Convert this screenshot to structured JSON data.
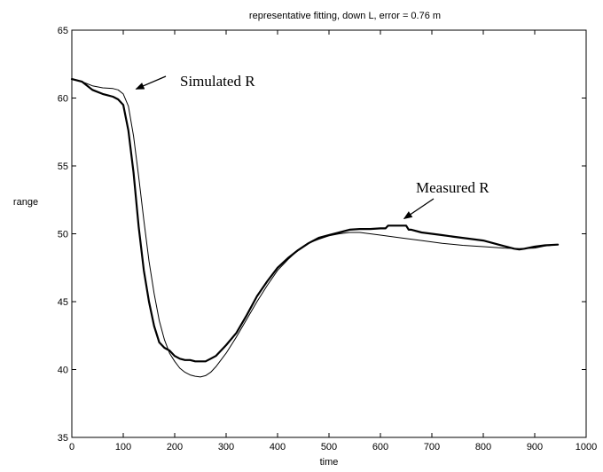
{
  "chart_data": {
    "type": "line",
    "title": "representative fitting, down L, error = 0.76 m",
    "xlabel": "time",
    "ylabel": "range",
    "xlim": [
      0,
      1000
    ],
    "ylim": [
      35,
      65
    ],
    "xticks": [
      "0",
      "100",
      "200",
      "300",
      "400",
      "500",
      "600",
      "700",
      "800",
      "900",
      "1000"
    ],
    "yticks": [
      "35",
      "40",
      "45",
      "50",
      "55",
      "60",
      "65"
    ],
    "grid": false,
    "series": [
      {
        "name": "Measured R",
        "color": "#000000",
        "x": [
          0,
          20,
          40,
          60,
          70,
          80,
          90,
          100,
          110,
          120,
          130,
          140,
          150,
          160,
          170,
          180,
          190,
          200,
          210,
          220,
          230,
          240,
          250,
          260,
          270,
          280,
          300,
          320,
          340,
          360,
          380,
          400,
          420,
          440,
          460,
          480,
          500,
          520,
          540,
          560,
          580,
          600,
          610,
          615,
          630,
          640,
          650,
          655,
          660,
          680,
          700,
          720,
          740,
          760,
          780,
          800,
          820,
          840,
          860,
          870,
          880,
          900,
          920,
          945
        ],
        "y": [
          61.4,
          61.2,
          60.6,
          60.3,
          60.2,
          60.1,
          59.9,
          59.5,
          57.6,
          54.5,
          50.5,
          47.3,
          45.0,
          43.2,
          42.0,
          41.6,
          41.4,
          41.0,
          40.8,
          40.7,
          40.7,
          40.6,
          40.6,
          40.6,
          40.8,
          41.0,
          41.8,
          42.7,
          44.0,
          45.4,
          46.5,
          47.5,
          48.2,
          48.8,
          49.3,
          49.7,
          49.9,
          50.1,
          50.3,
          50.35,
          50.35,
          50.4,
          50.4,
          50.6,
          50.6,
          50.6,
          50.6,
          50.3,
          50.3,
          50.1,
          50.0,
          49.9,
          49.8,
          49.7,
          49.6,
          49.5,
          49.3,
          49.1,
          48.9,
          48.85,
          48.9,
          49.05,
          49.15,
          49.2
        ]
      },
      {
        "name": "Simulated R",
        "color": "#000000",
        "x": [
          0,
          20,
          40,
          60,
          80,
          90,
          100,
          110,
          120,
          130,
          140,
          150,
          160,
          170,
          180,
          190,
          200,
          210,
          220,
          230,
          240,
          250,
          260,
          270,
          280,
          300,
          320,
          340,
          360,
          380,
          400,
          420,
          440,
          460,
          480,
          500,
          520,
          540,
          560,
          580,
          600,
          640,
          680,
          720,
          760,
          800,
          840,
          870,
          900,
          920,
          945
        ],
        "y": [
          61.4,
          61.2,
          60.9,
          60.75,
          60.7,
          60.6,
          60.3,
          59.4,
          57.2,
          54.2,
          51.0,
          48.0,
          45.6,
          43.6,
          42.2,
          41.2,
          40.6,
          40.1,
          39.8,
          39.6,
          39.5,
          39.45,
          39.55,
          39.8,
          40.2,
          41.2,
          42.4,
          43.7,
          45.0,
          46.2,
          47.3,
          48.1,
          48.8,
          49.3,
          49.6,
          49.85,
          50.0,
          50.1,
          50.1,
          50.0,
          49.9,
          49.7,
          49.5,
          49.3,
          49.15,
          49.05,
          48.95,
          48.9,
          48.95,
          49.1,
          49.2
        ]
      }
    ],
    "annotations": [
      {
        "text": "Simulated R",
        "target_x": 118,
        "target_y": 60.6
      },
      {
        "text": "Measured R",
        "target_x": 646,
        "target_y": 50.85
      }
    ]
  }
}
